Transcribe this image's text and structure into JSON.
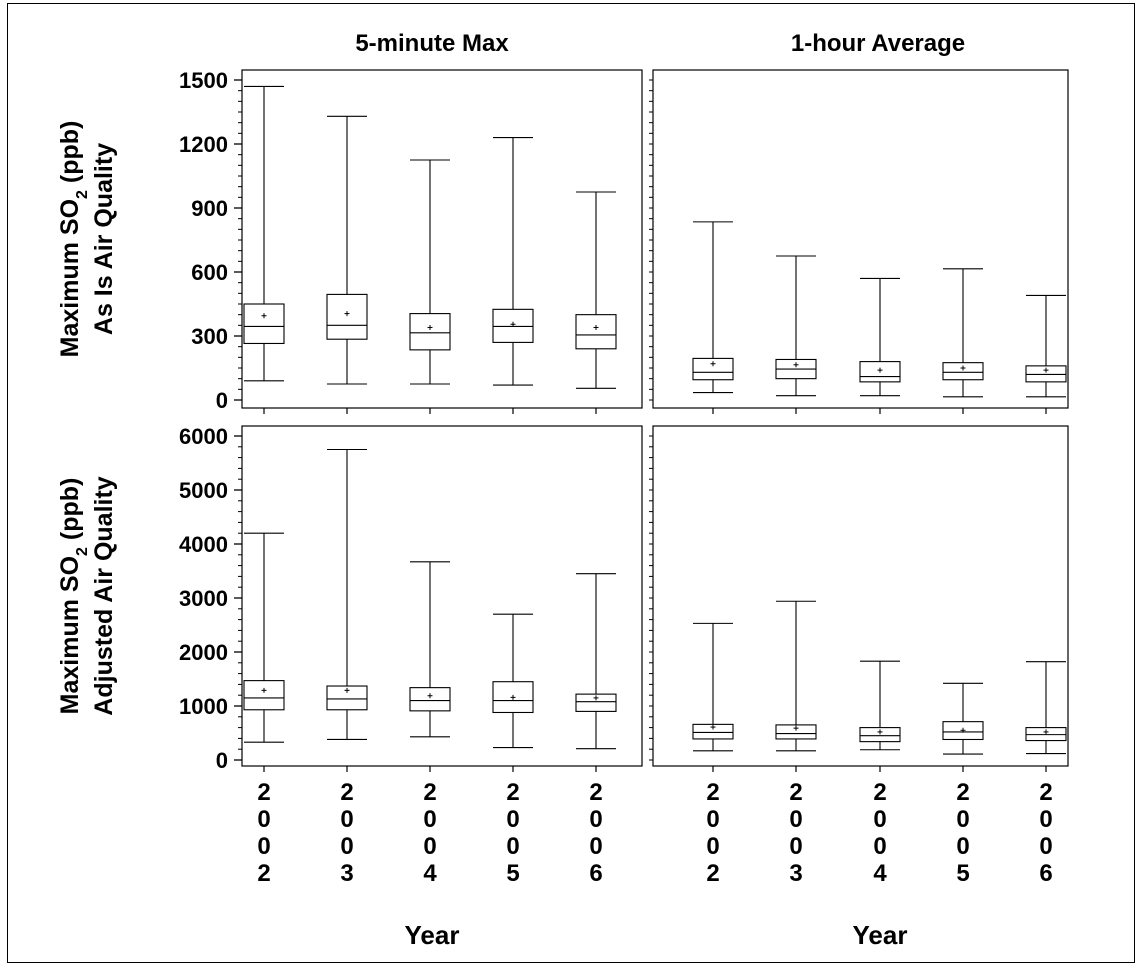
{
  "figure": {
    "x_axis_label": "Year"
  },
  "chart_data": [
    {
      "type": "box",
      "column": "5-minute Max",
      "row_label": "As Is Air Quality",
      "ylabel_parts": [
        "Maximum SO",
        "2",
        " (ppb)"
      ],
      "ylim": [
        0,
        1500
      ],
      "yticks": [
        0,
        300,
        600,
        900,
        1200,
        1500
      ],
      "ytick_labels": [
        "0",
        "300",
        "600",
        "900",
        "1200",
        "1500"
      ],
      "categories": [
        "2002",
        "2003",
        "2004",
        "2005",
        "2006"
      ],
      "boxes": [
        {
          "min": 90,
          "q1": 265,
          "median": 345,
          "q3": 450,
          "max": 1470,
          "mean": 395
        },
        {
          "min": 75,
          "q1": 285,
          "median": 350,
          "q3": 495,
          "max": 1330,
          "mean": 405
        },
        {
          "min": 75,
          "q1": 235,
          "median": 315,
          "q3": 405,
          "max": 1125,
          "mean": 340
        },
        {
          "min": 70,
          "q1": 270,
          "median": 345,
          "q3": 425,
          "max": 1230,
          "mean": 355
        },
        {
          "min": 55,
          "q1": 240,
          "median": 305,
          "q3": 400,
          "max": 975,
          "mean": 340
        }
      ]
    },
    {
      "type": "box",
      "column": "1-hour Average",
      "row_label": "As Is Air Quality",
      "ylim": [
        0,
        1500
      ],
      "categories": [
        "2002",
        "2003",
        "2004",
        "2005",
        "2006"
      ],
      "boxes": [
        {
          "min": 35,
          "q1": 95,
          "median": 130,
          "q3": 195,
          "max": 835,
          "mean": 170
        },
        {
          "min": 20,
          "q1": 100,
          "median": 145,
          "q3": 190,
          "max": 675,
          "mean": 165
        },
        {
          "min": 20,
          "q1": 85,
          "median": 110,
          "q3": 180,
          "max": 570,
          "mean": 140
        },
        {
          "min": 15,
          "q1": 95,
          "median": 130,
          "q3": 175,
          "max": 615,
          "mean": 150
        },
        {
          "min": 15,
          "q1": 85,
          "median": 120,
          "q3": 160,
          "max": 490,
          "mean": 140
        }
      ]
    },
    {
      "type": "box",
      "column": "5-minute Max",
      "row_label": "Adjusted Air Quality",
      "ylabel_parts": [
        "Maximum SO",
        "2",
        " (ppb)"
      ],
      "ylim": [
        0,
        6000
      ],
      "yticks": [
        0,
        1000,
        2000,
        3000,
        4000,
        5000,
        6000
      ],
      "ytick_labels": [
        "0",
        "1000",
        "2000",
        "3000",
        "4000",
        "5000",
        "6000"
      ],
      "categories": [
        "2002",
        "2003",
        "2004",
        "2005",
        "2006"
      ],
      "boxes": [
        {
          "min": 330,
          "q1": 930,
          "median": 1150,
          "q3": 1470,
          "max": 4200,
          "mean": 1290
        },
        {
          "min": 380,
          "q1": 930,
          "median": 1130,
          "q3": 1370,
          "max": 5750,
          "mean": 1290
        },
        {
          "min": 430,
          "q1": 910,
          "median": 1100,
          "q3": 1340,
          "max": 3670,
          "mean": 1190
        },
        {
          "min": 230,
          "q1": 880,
          "median": 1100,
          "q3": 1450,
          "max": 2700,
          "mean": 1160
        },
        {
          "min": 210,
          "q1": 900,
          "median": 1080,
          "q3": 1220,
          "max": 3450,
          "mean": 1150
        }
      ]
    },
    {
      "type": "box",
      "column": "1-hour Average",
      "row_label": "Adjusted Air Quality",
      "ylim": [
        0,
        6000
      ],
      "categories": [
        "2002",
        "2003",
        "2004",
        "2005",
        "2006"
      ],
      "boxes": [
        {
          "min": 170,
          "q1": 390,
          "median": 510,
          "q3": 660,
          "max": 2530,
          "mean": 610
        },
        {
          "min": 170,
          "q1": 390,
          "median": 490,
          "q3": 650,
          "max": 2940,
          "mean": 590
        },
        {
          "min": 190,
          "q1": 340,
          "median": 450,
          "q3": 600,
          "max": 1830,
          "mean": 520
        },
        {
          "min": 110,
          "q1": 380,
          "median": 520,
          "q3": 710,
          "max": 1420,
          "mean": 550
        },
        {
          "min": 120,
          "q1": 360,
          "median": 470,
          "q3": 600,
          "max": 1820,
          "mean": 520
        }
      ]
    }
  ]
}
